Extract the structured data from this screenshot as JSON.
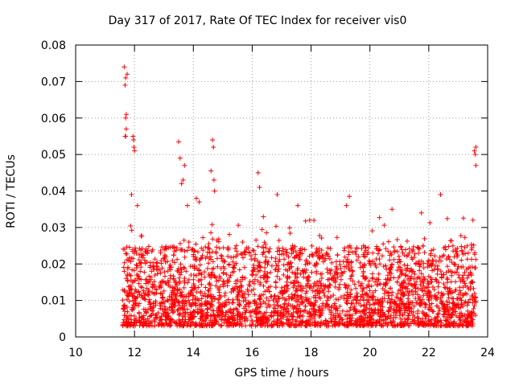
{
  "chart_data": {
    "type": "scatter",
    "title": "Day 317 of 2017, Rate Of TEC Index for receiver vis0",
    "xlabel": "GPS time / hours",
    "ylabel": "ROTI / TECUs",
    "xlim": [
      10,
      24
    ],
    "ylim": [
      0,
      0.08
    ],
    "xticks": [
      10,
      12,
      14,
      16,
      18,
      20,
      22,
      24
    ],
    "yticks": [
      0,
      0.01,
      0.02,
      0.03,
      0.04,
      0.05,
      0.06,
      0.07,
      0.08
    ],
    "ytick_labels": [
      "0",
      "0.01",
      "0.02",
      "0.03",
      "0.04",
      "0.05",
      "0.06",
      "0.07",
      "0.08"
    ],
    "grid": true,
    "marker": "+",
    "color": "#ff0000",
    "series": [
      {
        "name": "vis0",
        "x_range": [
          11.6,
          23.6
        ],
        "bulk_band": [
          0.003,
          0.025
        ],
        "outliers": [
          {
            "x": 11.65,
            "y": 0.074
          },
          {
            "x": 11.7,
            "y": 0.071
          },
          {
            "x": 11.75,
            "y": 0.072
          },
          {
            "x": 11.68,
            "y": 0.069
          },
          {
            "x": 11.72,
            "y": 0.061
          },
          {
            "x": 11.7,
            "y": 0.06
          },
          {
            "x": 11.72,
            "y": 0.057
          },
          {
            "x": 11.7,
            "y": 0.055
          },
          {
            "x": 11.68,
            "y": 0.055
          },
          {
            "x": 11.95,
            "y": 0.055
          },
          {
            "x": 11.97,
            "y": 0.054
          },
          {
            "x": 11.98,
            "y": 0.052
          },
          {
            "x": 12.0,
            "y": 0.051
          },
          {
            "x": 13.5,
            "y": 0.0535
          },
          {
            "x": 13.55,
            "y": 0.049
          },
          {
            "x": 13.7,
            "y": 0.047
          },
          {
            "x": 13.65,
            "y": 0.043
          },
          {
            "x": 13.6,
            "y": 0.042
          },
          {
            "x": 14.65,
            "y": 0.054
          },
          {
            "x": 14.68,
            "y": 0.052
          },
          {
            "x": 14.6,
            "y": 0.0455
          },
          {
            "x": 14.7,
            "y": 0.043
          },
          {
            "x": 14.72,
            "y": 0.04
          },
          {
            "x": 16.2,
            "y": 0.045
          },
          {
            "x": 16.25,
            "y": 0.041
          },
          {
            "x": 19.3,
            "y": 0.0385
          },
          {
            "x": 22.4,
            "y": 0.039
          },
          {
            "x": 23.6,
            "y": 0.052
          },
          {
            "x": 23.55,
            "y": 0.051
          },
          {
            "x": 23.6,
            "y": 0.047
          },
          {
            "x": 23.58,
            "y": 0.05
          },
          {
            "x": 11.9,
            "y": 0.039
          },
          {
            "x": 12.1,
            "y": 0.036
          },
          {
            "x": 13.8,
            "y": 0.036
          },
          {
            "x": 14.1,
            "y": 0.038
          },
          {
            "x": 14.2,
            "y": 0.037
          },
          {
            "x": 16.85,
            "y": 0.039
          },
          {
            "x": 17.55,
            "y": 0.036
          },
          {
            "x": 19.2,
            "y": 0.036
          },
          {
            "x": 20.75,
            "y": 0.035
          },
          {
            "x": 21.75,
            "y": 0.034
          },
          {
            "x": 23.5,
            "y": 0.032
          }
        ]
      }
    ]
  }
}
